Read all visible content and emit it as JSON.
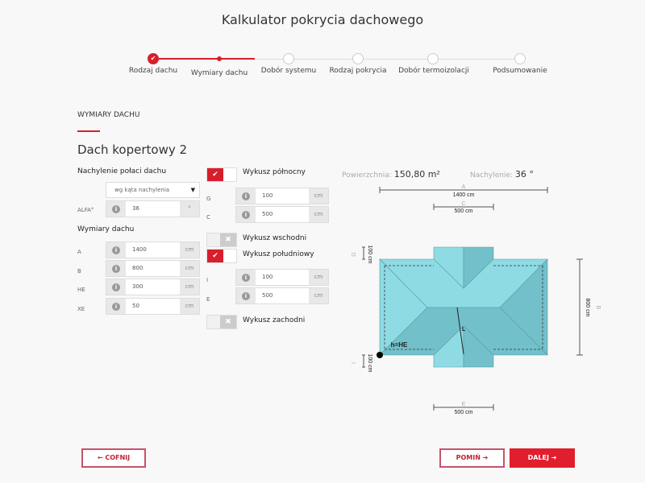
{
  "title": "Kalkulator pokrycia dachowego",
  "steps": [
    {
      "label": "Rodzaj dachu",
      "state": "done"
    },
    {
      "label": "Wymiary dachu",
      "state": "current"
    },
    {
      "label": "Dobór systemu",
      "state": "todo"
    },
    {
      "label": "Rodzaj pokrycia",
      "state": "todo"
    },
    {
      "label": "Dobór termoizolacji",
      "state": "todo"
    },
    {
      "label": "Podsumowanie",
      "state": "todo"
    }
  ],
  "section": "WYMIARY DACHU",
  "roof_title": "Dach kopertowy 2",
  "slope": {
    "label": "Nachylenie połaci dachu",
    "select": "wg kąta nachylenia",
    "alfa_label": "ALFA°",
    "alfa": "36",
    "alfa_unit": "°"
  },
  "dims": {
    "label": "Wymiary dachu",
    "rows": [
      {
        "name": "A",
        "value": "1400",
        "unit": "cm"
      },
      {
        "name": "B",
        "value": "800",
        "unit": "cm"
      },
      {
        "name": "HE",
        "value": "300",
        "unit": "cm"
      },
      {
        "name": "XE",
        "value": "50",
        "unit": "cm"
      }
    ]
  },
  "dormers": {
    "north": {
      "label": "Wykusz północny",
      "on": true,
      "fields": [
        {
          "name": "G",
          "value": "100",
          "unit": "cm"
        },
        {
          "name": "C",
          "value": "500",
          "unit": "cm"
        }
      ]
    },
    "east": {
      "label": "Wykusz wschodni",
      "on": false
    },
    "south": {
      "label": "Wykusz południowy",
      "on": true,
      "fields": [
        {
          "name": "I",
          "value": "100",
          "unit": "cm"
        },
        {
          "name": "E",
          "value": "500",
          "unit": "cm"
        }
      ]
    },
    "west": {
      "label": "Wykusz zachodni",
      "on": false
    }
  },
  "summary": {
    "area_label": "Powierzchnia:",
    "area": "150,80 m²",
    "slope_label": "Nachylenie:",
    "slope": "36 °"
  },
  "diagram": {
    "A": "A",
    "A_val": "1400 cm",
    "C": "C",
    "C_val": "500 cm",
    "G": "G",
    "G_val": "100 cm",
    "I": "I",
    "I_val": "100 cm",
    "B": "B",
    "B_val": "800 cm",
    "E": "E",
    "E_val": "500 cm",
    "L": "L",
    "h": "h=HE",
    "colors": {
      "light": "#8edbe4",
      "dark": "#72c0ca"
    }
  },
  "buttons": {
    "back": "← COFNIJ",
    "skip": "POMIŃ ➔",
    "next": "DALEJ ➔"
  },
  "accent": "#d81e2c"
}
